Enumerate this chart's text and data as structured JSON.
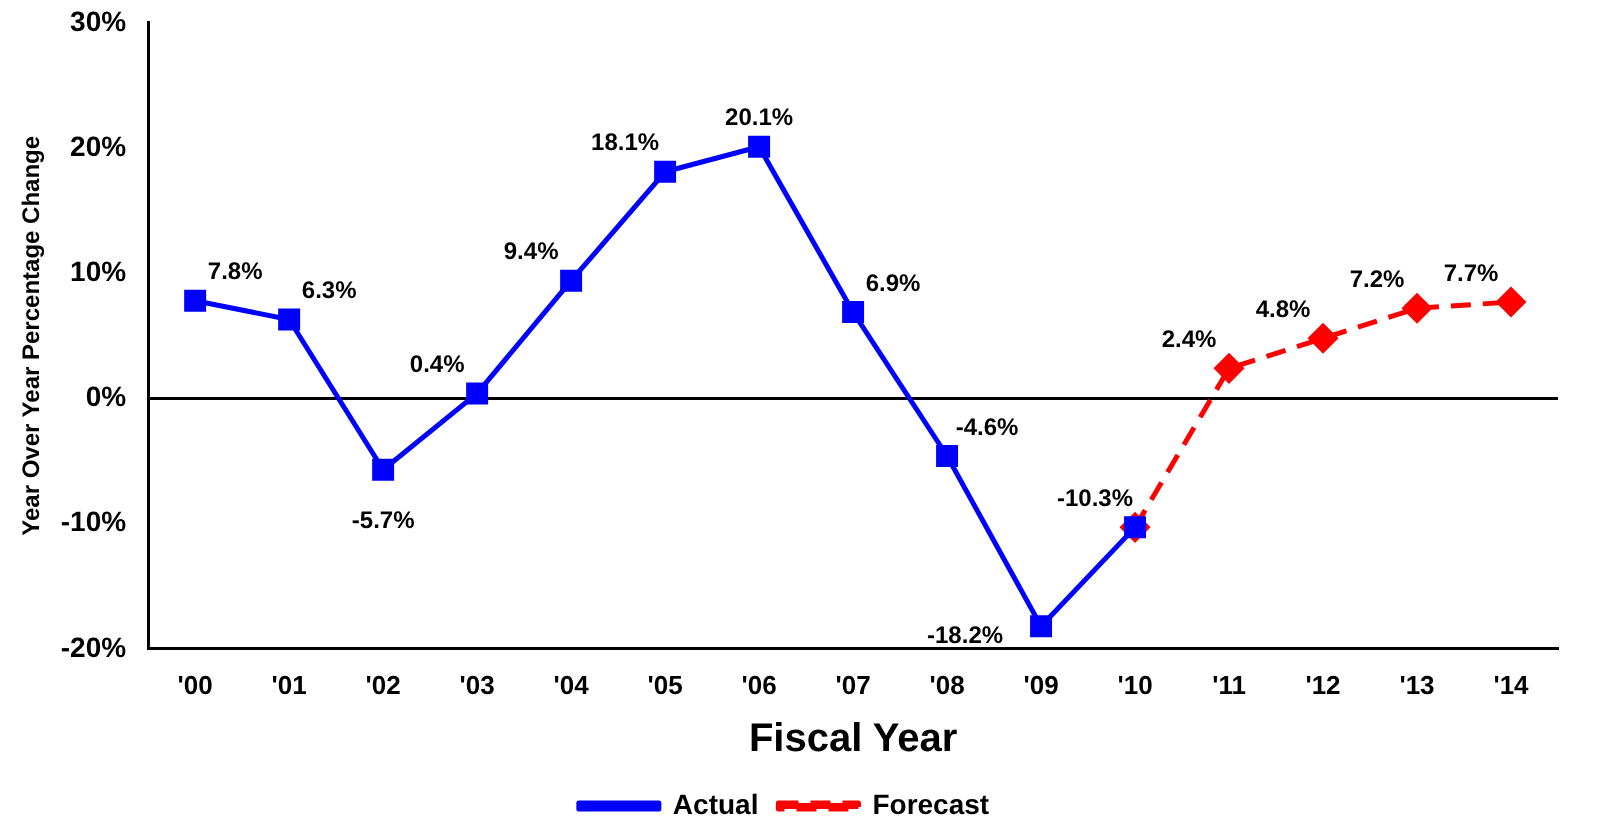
{
  "chart_data": {
    "type": "line",
    "xlabel": "Fiscal Year",
    "ylabel": "Year Over Year Percentage Change",
    "categories": [
      "'00",
      "'01",
      "'02",
      "'03",
      "'04",
      "'05",
      "'06",
      "'07",
      "'08",
      "'09",
      "'10",
      "'11",
      "'12",
      "'13",
      "'14"
    ],
    "series": [
      {
        "name": "Actual",
        "color": "#0000ff",
        "marker": "square",
        "line_style": "solid",
        "values": [
          7.8,
          6.3,
          -5.7,
          0.4,
          9.4,
          18.1,
          20.1,
          6.9,
          -4.6,
          -18.2,
          -10.3,
          null,
          null,
          null,
          null
        ],
        "value_labels": [
          "7.8%",
          "6.3%",
          "-5.7%",
          "0.4%",
          "9.4%",
          "18.1%",
          "20.1%",
          "6.9%",
          "-4.6%",
          "-18.2%",
          "-10.3%",
          null,
          null,
          null,
          null
        ]
      },
      {
        "name": "Forecast",
        "color": "#ff0000",
        "marker": "diamond",
        "line_style": "dashed",
        "values": [
          null,
          null,
          null,
          null,
          null,
          null,
          null,
          null,
          null,
          null,
          -10.3,
          2.4,
          4.8,
          7.2,
          7.7
        ],
        "value_labels": [
          null,
          null,
          null,
          null,
          null,
          null,
          null,
          null,
          null,
          null,
          null,
          "2.4%",
          "4.8%",
          "7.2%",
          "7.7%"
        ]
      }
    ],
    "ylim": [
      -20,
      30
    ],
    "yticks": [
      {
        "value": -20,
        "label": "-20%"
      },
      {
        "value": -10,
        "label": "-10%"
      },
      {
        "value": 0,
        "label": "0%"
      },
      {
        "value": 10,
        "label": "10%"
      },
      {
        "value": 20,
        "label": "20%"
      },
      {
        "value": 30,
        "label": "30%"
      }
    ],
    "ref_lines": [
      {
        "axis": "y",
        "value": 0,
        "color": "#000000"
      }
    ],
    "grid": false,
    "legend": "bottom"
  }
}
